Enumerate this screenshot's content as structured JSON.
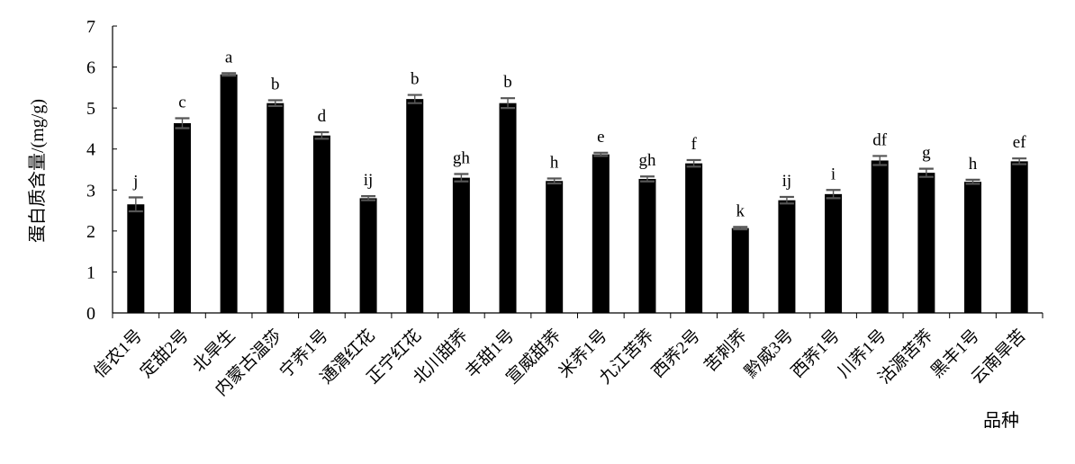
{
  "chart_data": {
    "type": "bar",
    "xlabel": "品种",
    "ylabel": "蛋白质含量/(mg/g)",
    "ylim": [
      0,
      7
    ],
    "yticks": [
      0,
      1,
      2,
      3,
      4,
      5,
      6,
      7
    ],
    "grid": false,
    "legend": "none",
    "bar_color": "#000000",
    "categories": [
      "信农1号",
      "定甜2号",
      "北旱生",
      "内蒙古温莎",
      "宁荞1号",
      "通渭红花",
      "正宁红花",
      "北川甜荞",
      "丰甜1号",
      "宣威甜荞",
      "米荞1号",
      "九江苦荞",
      "西荞2号",
      "苦刺荞",
      "黔威3号",
      "西荞1号",
      "川荞1号",
      "沽源苦荞",
      "黑丰1号",
      "云南旱苦"
    ],
    "values": [
      2.65,
      4.63,
      5.82,
      5.12,
      4.33,
      2.8,
      5.22,
      3.3,
      5.12,
      3.22,
      3.87,
      3.27,
      3.65,
      2.07,
      2.75,
      2.9,
      3.72,
      3.42,
      3.2,
      3.7
    ],
    "errors": [
      0.17,
      0.12,
      0.03,
      0.07,
      0.08,
      0.05,
      0.1,
      0.09,
      0.12,
      0.06,
      0.04,
      0.06,
      0.08,
      0.03,
      0.08,
      0.1,
      0.11,
      0.1,
      0.05,
      0.07
    ],
    "significance": [
      "j",
      "c",
      "a",
      "b",
      "d",
      "ij",
      "b",
      "gh",
      "b",
      "h",
      "e",
      "gh",
      "f",
      "k",
      "ij",
      "i",
      "df",
      "g",
      "h",
      "ef"
    ]
  }
}
